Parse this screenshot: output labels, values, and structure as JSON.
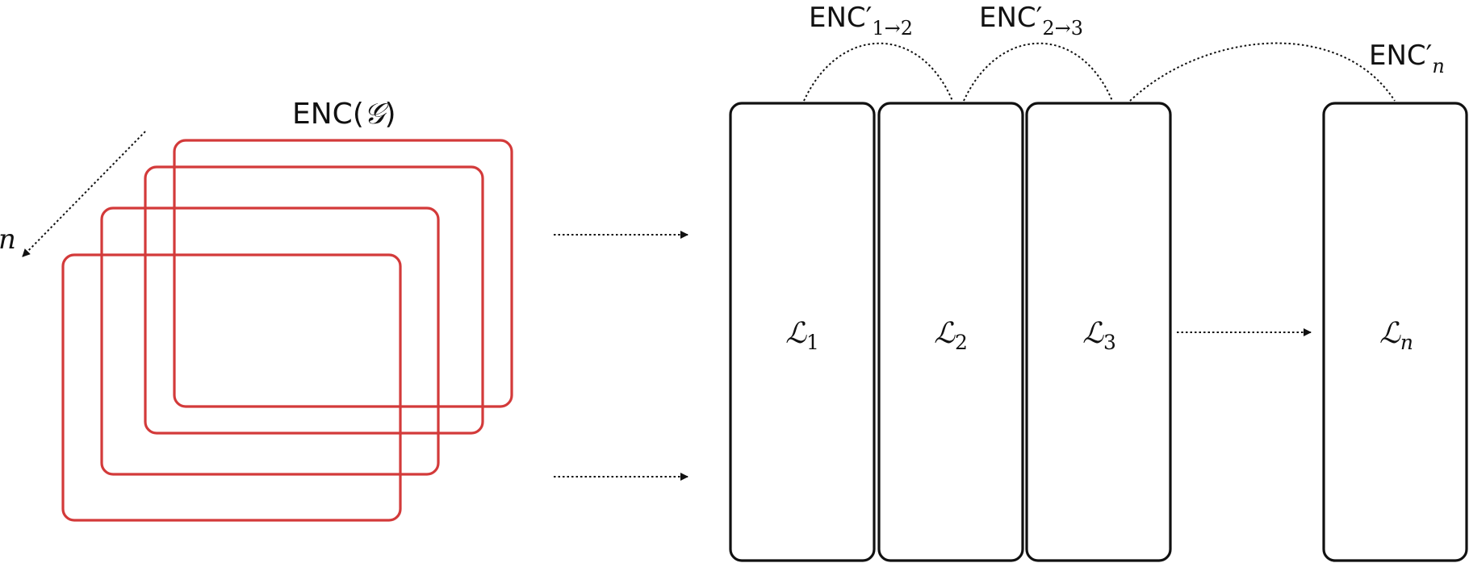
{
  "colors": {
    "frame": "#d33a3a",
    "ink": "#111111",
    "background": "#ffffff"
  },
  "stack": {
    "title_base": "ENC(",
    "title_symbol": "𝒢",
    "title_close": ")",
    "direction_label": "n",
    "frame_count": 4
  },
  "layers": [
    {
      "symbol": "ℒ",
      "subscript": "1",
      "subscript_italic": false
    },
    {
      "symbol": "ℒ",
      "subscript": "2",
      "subscript_italic": false
    },
    {
      "symbol": "ℒ",
      "subscript": "3",
      "subscript_italic": false
    },
    {
      "symbol": "ℒ",
      "subscript": "n",
      "subscript_italic": true
    }
  ],
  "links": [
    {
      "base": "ENC′",
      "subscript": "1→2",
      "subscript_italic": false
    },
    {
      "base": "ENC′",
      "subscript": "2→3",
      "subscript_italic": false
    },
    {
      "base": "ENC′",
      "subscript": "n",
      "subscript_italic": true
    }
  ],
  "icons": {
    "stack_direction_arrow": "arrow-down-left-dotted",
    "input_arrow": "arrow-right-dotted",
    "ellipsis_arrow": "arrow-right-dotted"
  }
}
